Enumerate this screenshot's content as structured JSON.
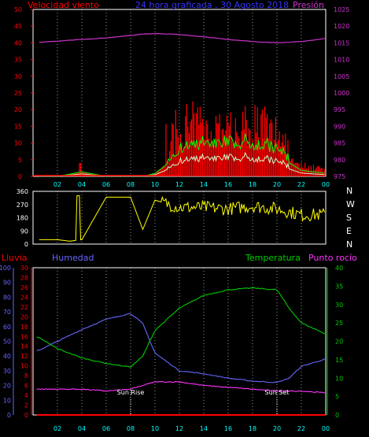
{
  "top": {
    "title": "24 hora graficada , 30 Agosto 2018",
    "left_label": "Velocidad viento",
    "right_label": "Presión",
    "left_ticks": [
      "50",
      "45",
      "40",
      "35",
      "30",
      "25",
      "20",
      "15",
      "10",
      "5",
      "0"
    ],
    "right_ticks": [
      "1025",
      "1020",
      "1015",
      "1010",
      "1005",
      "1000",
      "995",
      "990",
      "985",
      "980",
      "975"
    ]
  },
  "mid": {
    "left_ticks": [
      "360",
      "270",
      "180",
      "90",
      "0"
    ],
    "compass": [
      "N",
      "W",
      "S",
      "E",
      "N"
    ]
  },
  "bottom": {
    "lluvia_label": "Lluvia",
    "humedad_label": "Humedad",
    "temp_label": "Temperatura",
    "rocio_label": "Punto rocío",
    "hum_ticks": [
      "100",
      "90",
      "80",
      "70",
      "60",
      "50",
      "40",
      "30",
      "20",
      "10",
      "0"
    ],
    "rain_ticks": [
      "30",
      "28",
      "26",
      "24",
      "22",
      "20",
      "18",
      "16",
      "14",
      "12",
      "10",
      "8",
      "6",
      "4",
      "2",
      "0"
    ],
    "temp_ticks": [
      "40",
      "35",
      "30",
      "25",
      "20",
      "15",
      "10",
      "5",
      "0"
    ],
    "sunrise": "Sun Rise",
    "sunset": "Sun Set"
  },
  "x_ticks": [
    "02",
    "04",
    "06",
    "08",
    "10",
    "12",
    "14",
    "16",
    "18",
    "20",
    "22",
    "00"
  ],
  "colors": {
    "wind": "#ff0000",
    "gust": "#00ff00",
    "avgwind": "#ccffcc",
    "pressure": "#cc33cc",
    "direction": "#ffff00",
    "humidity": "#6666ff",
    "temperature": "#00cc00",
    "dewpoint": "#ff33ff",
    "rain": "#ff0000",
    "x_axis": "#00ffff"
  },
  "chart_data": [
    {
      "type": "line",
      "title": "24 hora graficada , 30 Agosto 2018",
      "ylabel": "Velocidad viento",
      "y2label": "Presión",
      "ylim": [
        0,
        50
      ],
      "y2lim": [
        975,
        1025
      ],
      "x_hours": [
        0.5,
        2,
        4,
        6,
        8,
        9,
        10,
        12,
        14,
        16,
        18,
        20,
        22,
        24
      ],
      "series": [
        {
          "name": "Presión",
          "axis": "right",
          "values": [
            1015.2,
            1015.5,
            1016,
            1016.5,
            1017.2,
            1017.6,
            1017.8,
            1017.5,
            1016.8,
            1016,
            1015.4,
            1015,
            1015.4,
            1016.3
          ]
        },
        {
          "name": "Velocidad viento",
          "axis": "left",
          "values": [
            0,
            0,
            1.5,
            0,
            0,
            0,
            1,
            7,
            9,
            9,
            9,
            7,
            2,
            1
          ]
        }
      ]
    },
    {
      "type": "line",
      "ylim": [
        0,
        360
      ],
      "x_hours": [
        0.5,
        2,
        3,
        4,
        6,
        8,
        9,
        10,
        12,
        14,
        16,
        18,
        20,
        22,
        24
      ],
      "series": [
        {
          "name": "direction",
          "values": [
            30,
            30,
            20,
            30,
            320,
            320,
            100,
            300,
            250,
            250,
            240,
            260,
            240,
            200,
            200
          ]
        }
      ]
    },
    {
      "type": "line",
      "x_hours": [
        0.5,
        2,
        4,
        6,
        8,
        9,
        10,
        12,
        14,
        16,
        18,
        20,
        21,
        22,
        24
      ],
      "series": [
        {
          "name": "Humedad",
          "axis": "humidity",
          "ylim": [
            0,
            100
          ],
          "values": [
            44,
            50,
            58,
            65,
            69,
            62,
            42,
            30,
            28,
            25,
            23,
            22,
            25,
            33,
            38
          ]
        },
        {
          "name": "Temperatura",
          "axis": "temperature",
          "ylim": [
            0,
            40
          ],
          "values": [
            21,
            18,
            15.5,
            14,
            13,
            16,
            23,
            29,
            32.5,
            34,
            34.5,
            34,
            29,
            25,
            22
          ]
        },
        {
          "name": "Punto rocío",
          "axis": "temperature",
          "values": [
            7,
            7,
            7,
            6.5,
            7,
            8,
            9,
            9,
            8,
            7.5,
            7,
            6.5,
            6.5,
            6.5,
            6
          ]
        },
        {
          "name": "Lluvia",
          "axis": "rain",
          "ylim": [
            0,
            30
          ],
          "values": [
            0,
            0,
            0,
            0,
            0,
            0,
            0,
            0,
            0,
            0,
            0,
            0,
            0,
            0,
            0
          ]
        }
      ]
    }
  ]
}
